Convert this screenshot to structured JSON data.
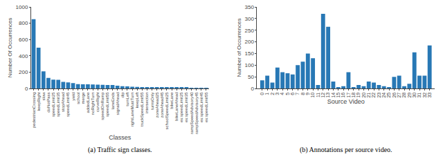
{
  "chart_data": [
    {
      "type": "bar",
      "title": "(a) Traffic sign classes.",
      "xlabel": "Classes",
      "ylabel": "Number Of Occurrences",
      "categories": [
        "pedestrianCrossing",
        "keepRight",
        "slow",
        "doNotPass",
        "speedLimit25",
        "speedLimit35",
        "stopAhead",
        "speedLimit45",
        "yield",
        "school",
        "merge",
        "addedLane",
        "noRightTurn",
        "curveRight",
        "speedOnRamp",
        "speedLimit55",
        "laneEnds",
        "signalAhead",
        "dip",
        "turnLeft",
        "rightLaneMustTurn",
        "keepLeft",
        "truckSpeedLimit55",
        "intersection",
        "turnsOnly",
        "zoneAhead25",
        "zoneAhead45",
        "schoolSpeedLimit25",
        "bikeLane",
        "bikeLaneAhead",
        "ex:speedLimit25",
        "ex:speedLimit35",
        "rampSpeedAdvisory40",
        "rampSpeedAdvisory45",
        "ex:speedLimit45",
        "ex:speedLimit55"
      ],
      "values": [
        850,
        500,
        210,
        130,
        108,
        105,
        80,
        75,
        65,
        52,
        50,
        50,
        48,
        46,
        45,
        43,
        42,
        33,
        27,
        25,
        22,
        20,
        18,
        17,
        16,
        15,
        14,
        13,
        12,
        11,
        10,
        9,
        8,
        7,
        6,
        5
      ],
      "color": "#2878b5",
      "ylim": [
        0,
        1000
      ],
      "yticks": [
        0,
        200,
        400,
        600,
        800,
        1000
      ],
      "grid": false
    },
    {
      "type": "bar",
      "title": "(b) Annotations per source video.",
      "xlabel": "Source Video",
      "ylabel": "Number of Occurrences",
      "x": [
        0,
        1,
        2,
        3,
        4,
        5,
        6,
        7,
        8,
        9,
        10,
        11,
        12,
        13,
        14,
        15,
        16,
        17,
        18,
        19,
        20,
        21,
        22,
        23,
        24,
        25,
        26,
        27,
        28,
        29,
        30,
        31,
        32,
        33
      ],
      "values": [
        35,
        55,
        25,
        90,
        70,
        65,
        60,
        100,
        115,
        150,
        130,
        15,
        320,
        265,
        30,
        5,
        10,
        70,
        5,
        15,
        10,
        30,
        25,
        15,
        10,
        5,
        50,
        55,
        10,
        20,
        155,
        55,
        55,
        185
      ],
      "color": "#2878b5",
      "xlim": [
        -1,
        34
      ],
      "xticks": [
        0,
        1,
        2,
        3,
        4,
        5,
        6,
        7,
        8,
        9,
        10,
        11,
        12,
        13,
        14,
        15,
        16,
        17,
        18,
        19,
        20,
        21,
        22,
        23,
        24,
        25,
        26,
        27,
        28,
        29,
        30,
        31,
        32,
        33
      ],
      "ylim": [
        0,
        350
      ],
      "yticks": [
        0,
        50,
        100,
        150,
        200,
        250,
        300,
        350
      ],
      "grid": false
    }
  ]
}
